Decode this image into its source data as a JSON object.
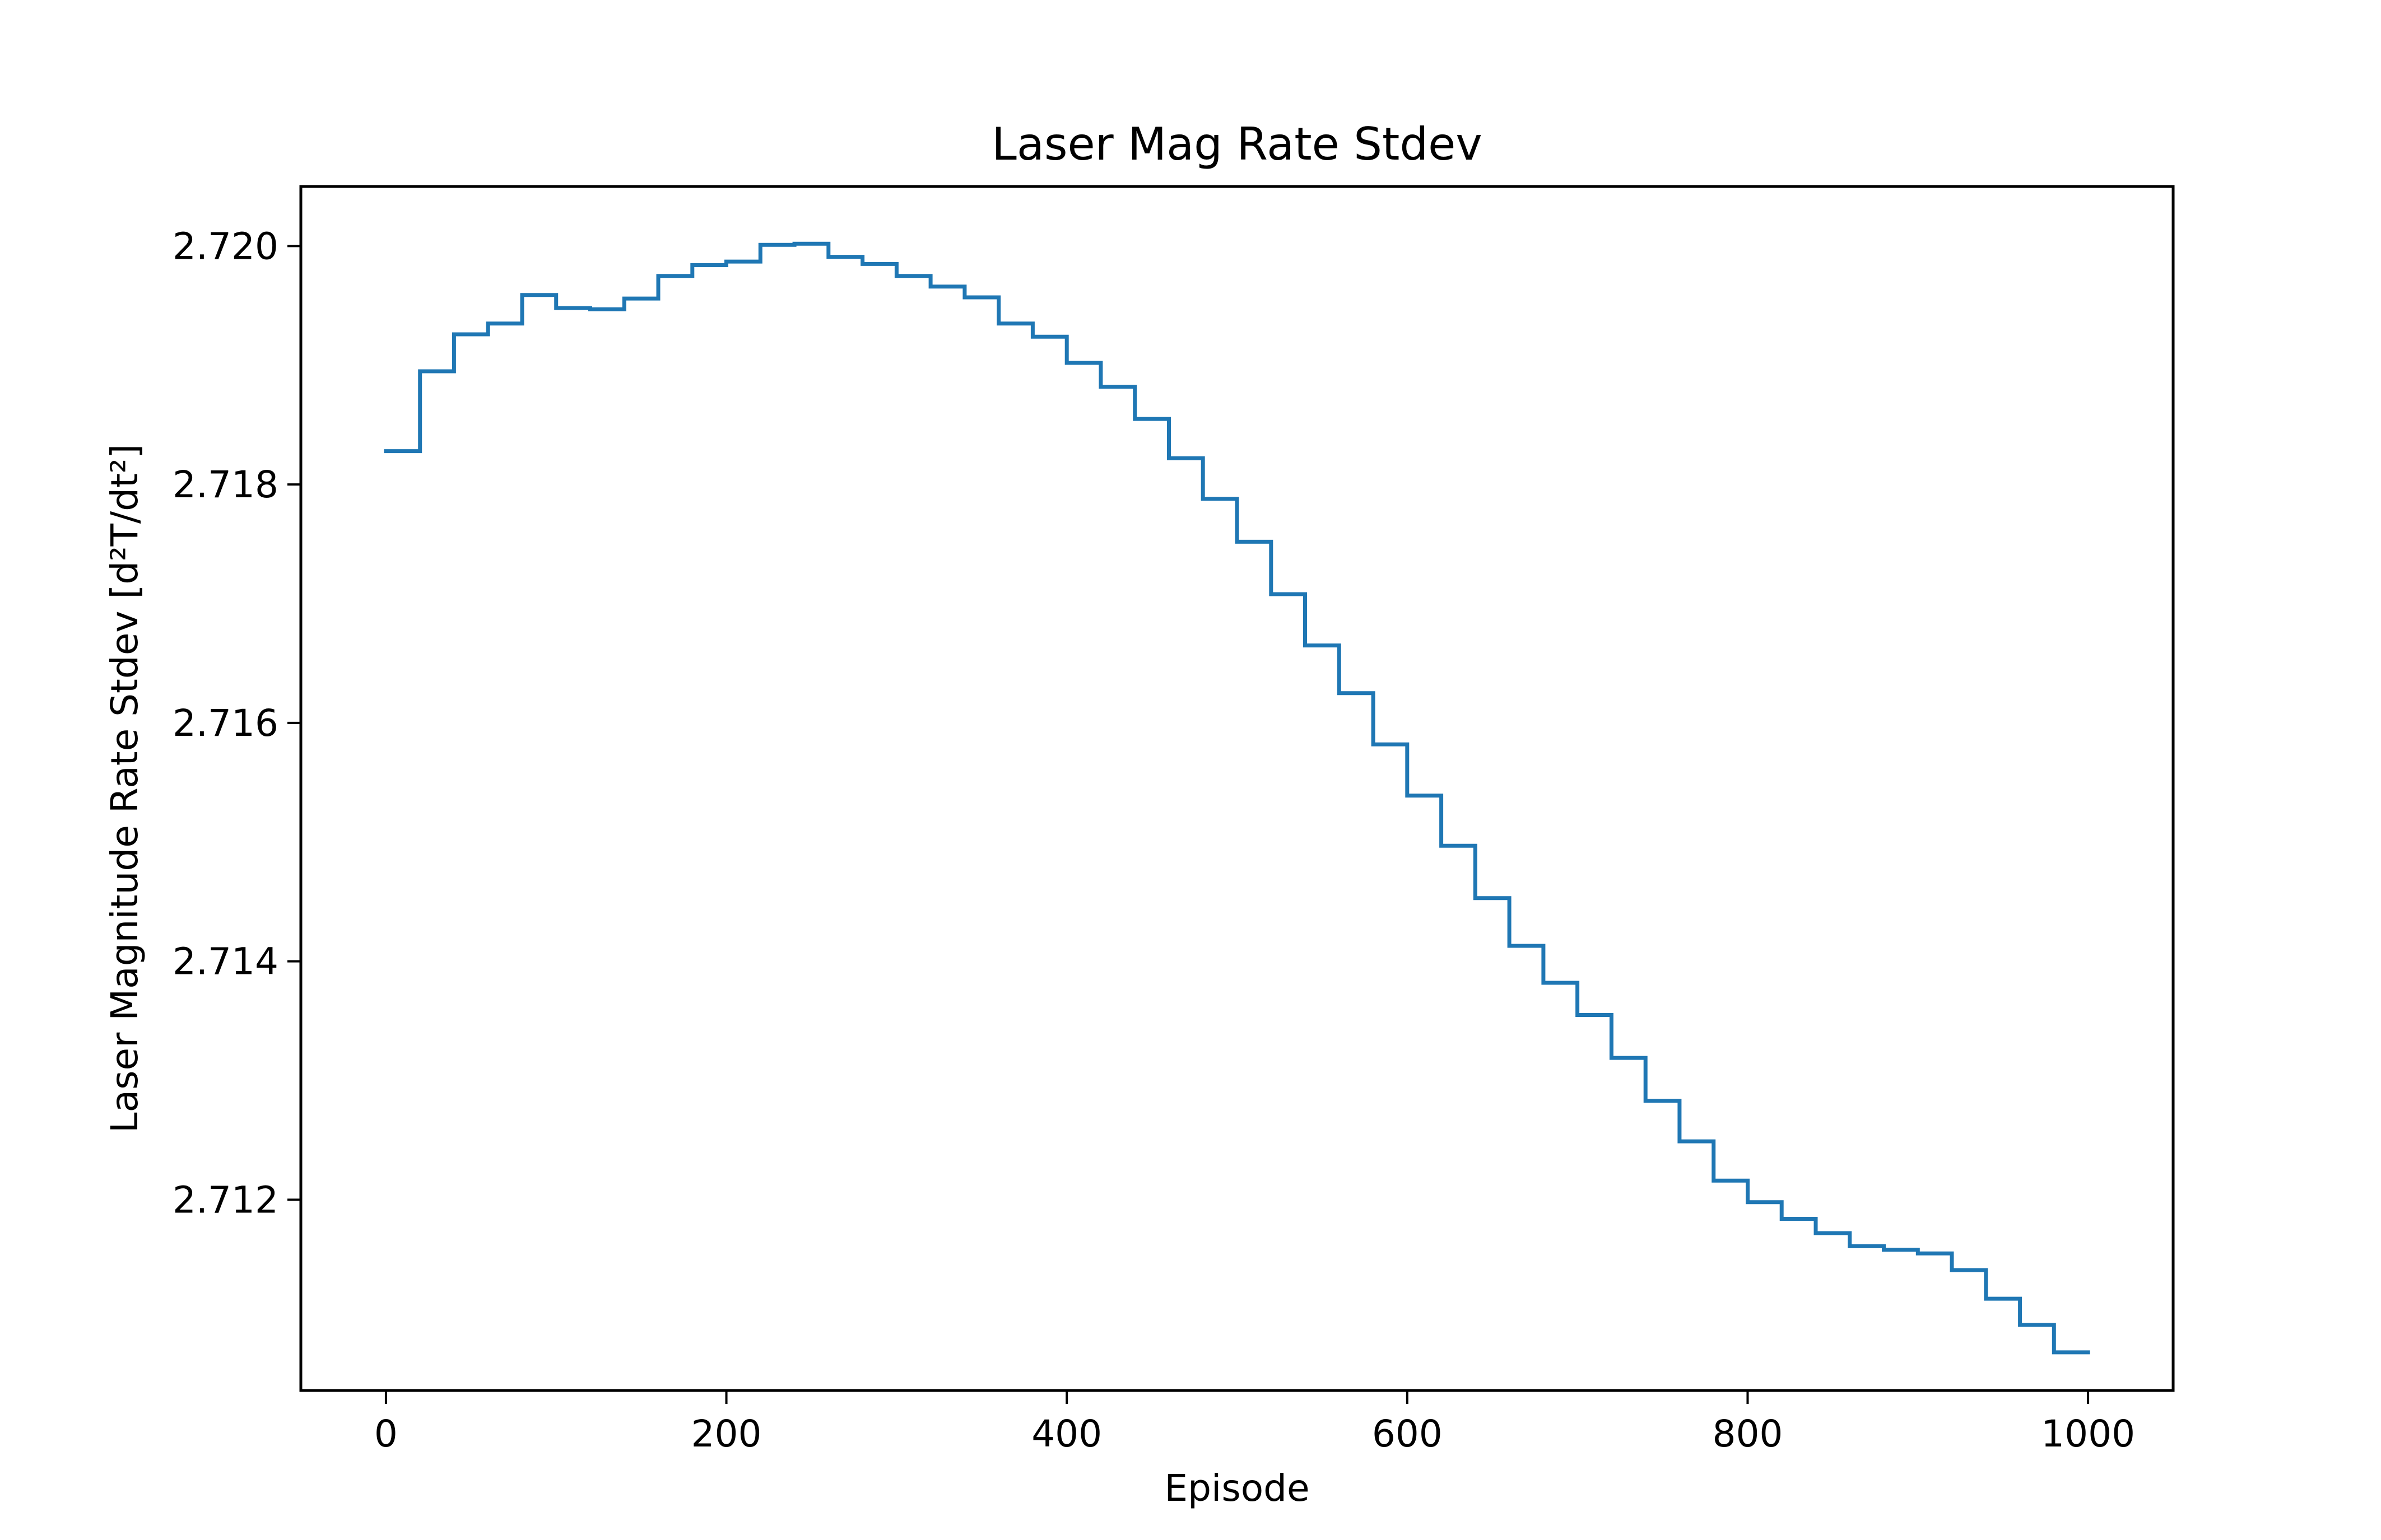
{
  "chart_data": {
    "type": "line",
    "title": "Laser Mag Rate Stdev",
    "xlabel": "Episode",
    "ylabel": "Laser Magnitude Rate Stdev [d²T/dt²]",
    "xlim": [
      -50,
      1050
    ],
    "ylim": [
      2.7104,
      2.7205
    ],
    "x_ticks": [
      0,
      200,
      400,
      600,
      800,
      1000
    ],
    "x_tick_labels": [
      "0",
      "200",
      "400",
      "600",
      "800",
      "1000"
    ],
    "y_ticks": [
      2.712,
      2.714,
      2.716,
      2.718,
      2.72
    ],
    "y_tick_labels": [
      "2.712",
      "2.714",
      "2.716",
      "2.718",
      "2.720"
    ],
    "grid": false,
    "line_style": "step",
    "series": [
      {
        "color": "#1f77b4",
        "x": [
          0,
          20,
          40,
          60,
          80,
          100,
          120,
          140,
          160,
          180,
          200,
          220,
          240,
          260,
          280,
          300,
          320,
          340,
          360,
          380,
          400,
          420,
          440,
          460,
          480,
          500,
          520,
          540,
          560,
          580,
          600,
          620,
          640,
          660,
          680,
          700,
          720,
          740,
          760,
          780,
          800,
          820,
          840,
          860,
          880,
          900,
          920,
          940,
          960,
          980,
          1000
        ],
        "y": [
          2.71828,
          2.71895,
          2.71926,
          2.71935,
          2.71959,
          2.71948,
          2.71947,
          2.71956,
          2.71975,
          2.71984,
          2.71987,
          2.72001,
          2.72002,
          2.71991,
          2.71985,
          2.71975,
          2.71966,
          2.71957,
          2.71935,
          2.71924,
          2.71902,
          2.71882,
          2.71855,
          2.71822,
          2.71788,
          2.71752,
          2.71708,
          2.71665,
          2.71625,
          2.71582,
          2.71539,
          2.71497,
          2.71453,
          2.71413,
          2.71382,
          2.71355,
          2.71319,
          2.71283,
          2.71249,
          2.71216,
          2.71198,
          2.71184,
          2.71172,
          2.71161,
          2.71158,
          2.71155,
          2.71141,
          2.71117,
          2.71095,
          2.71072,
          2.71072
        ]
      }
    ]
  }
}
